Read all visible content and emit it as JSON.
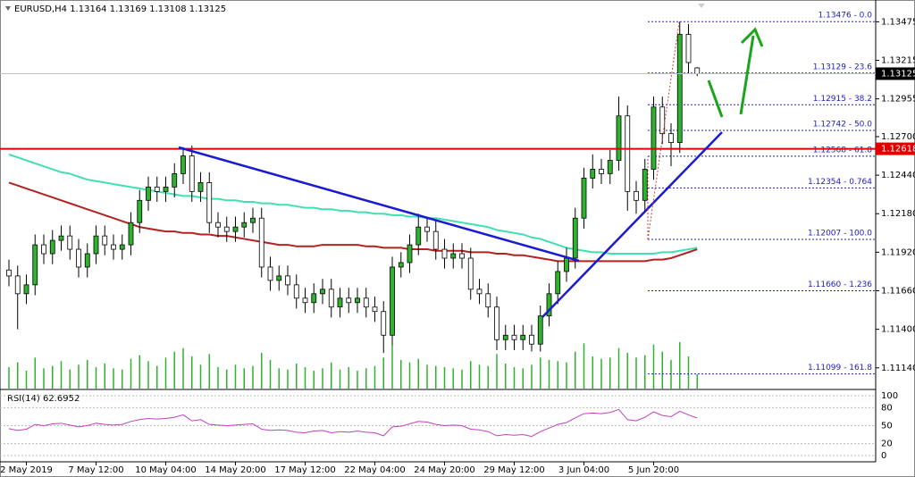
{
  "chart_data": {
    "type": "candlestick",
    "title": "EURUSD,H4  1.13164 1.13169 1.13108 1.13125",
    "categories": [
      null,
      null,
      "2 May 2019",
      null,
      null,
      null,
      null,
      null,
      null,
      null,
      "7 May 12:00",
      null,
      null,
      null,
      null,
      null,
      null,
      null,
      "10 May 04:00",
      null,
      null,
      null,
      null,
      null,
      null,
      null,
      "14 May 20:00",
      null,
      null,
      null,
      null,
      null,
      null,
      null,
      "17 May 12:00",
      null,
      null,
      null,
      null,
      null,
      null,
      null,
      "22 May 04:00",
      null,
      null,
      null,
      null,
      null,
      null,
      null,
      "24 May 20:00",
      null,
      null,
      null,
      null,
      null,
      null,
      null,
      "29 May 12:00",
      null,
      null,
      null,
      null,
      null,
      null,
      null,
      "3 Jun 04:00",
      null,
      null,
      null,
      null,
      null,
      null,
      null,
      "5 Jun 20:00",
      null,
      null,
      null,
      null,
      null
    ],
    "open": [
      1.118,
      1.1176,
      1.1164,
      1.117,
      1.1197,
      1.1191,
      1.12,
      1.1203,
      1.1194,
      1.1182,
      1.1191,
      1.1203,
      1.1197,
      1.1194,
      1.1197,
      1.1212,
      1.1227,
      1.1236,
      1.1233,
      1.1236,
      1.1245,
      1.1257,
      1.1233,
      1.1239,
      1.1212,
      1.1209,
      1.1206,
      1.1209,
      1.1212,
      1.1215,
      1.1182,
      1.1173,
      1.1176,
      1.117,
      1.1161,
      1.1158,
      1.1164,
      1.1167,
      1.1155,
      1.1161,
      1.1158,
      1.1161,
      1.1155,
      1.1152,
      1.1136,
      1.1182,
      1.1185,
      1.1197,
      1.1209,
      1.1206,
      1.1194,
      1.1188,
      1.1191,
      1.1188,
      1.1167,
      1.1164,
      1.1155,
      1.1133,
      1.1136,
      1.1133,
      1.1136,
      1.113,
      1.1149,
      1.1164,
      1.1179,
      1.1188,
      1.1215,
      1.1242,
      1.1248,
      1.1245,
      1.1254,
      1.1284,
      1.1233,
      1.1227,
      1.1248,
      1.129,
      1.1272,
      1.1266,
      1.1339,
      1.13164
    ],
    "high": [
      1.1187,
      1.1183,
      1.1177,
      1.1204,
      1.1204,
      1.1207,
      1.121,
      1.121,
      1.1201,
      1.1198,
      1.121,
      1.121,
      1.1204,
      1.1204,
      1.1219,
      1.1234,
      1.1243,
      1.1243,
      1.1243,
      1.1252,
      1.1263,
      1.1264,
      1.1246,
      1.1246,
      1.1219,
      1.1216,
      1.1216,
      1.1219,
      1.1222,
      1.1222,
      1.1189,
      1.1183,
      1.1183,
      1.1177,
      1.1168,
      1.1171,
      1.1174,
      1.1174,
      1.1168,
      1.1168,
      1.1168,
      1.1168,
      1.1162,
      1.1159,
      1.1189,
      1.1192,
      1.1204,
      1.1218,
      1.1216,
      1.1213,
      1.1201,
      1.1198,
      1.1198,
      1.1195,
      1.1174,
      1.1171,
      1.1162,
      1.1143,
      1.1143,
      1.1143,
      1.1143,
      1.1156,
      1.1171,
      1.1186,
      1.1195,
      1.1222,
      1.1249,
      1.1258,
      1.1255,
      1.1261,
      1.1297,
      1.1291,
      1.124,
      1.1255,
      1.1297,
      1.1297,
      1.1279,
      1.13476,
      1.1346,
      1.13169
    ],
    "low": [
      1.1169,
      1.114,
      1.1157,
      1.1163,
      1.1184,
      1.1184,
      1.1193,
      1.1187,
      1.1175,
      1.1175,
      1.1184,
      1.119,
      1.1187,
      1.1187,
      1.119,
      1.1205,
      1.122,
      1.1226,
      1.1226,
      1.1229,
      1.1238,
      1.1226,
      1.1226,
      1.1205,
      1.1202,
      1.1199,
      1.1199,
      1.1202,
      1.1205,
      1.1175,
      1.1166,
      1.1166,
      1.1163,
      1.1154,
      1.1151,
      1.1151,
      1.1157,
      1.1148,
      1.1148,
      1.1151,
      1.1151,
      1.1148,
      1.1145,
      1.1124,
      1.1129,
      1.1175,
      1.1178,
      1.119,
      1.1199,
      1.1187,
      1.1181,
      1.1181,
      1.1181,
      1.116,
      1.1157,
      1.1148,
      1.1126,
      1.1126,
      1.1126,
      1.1126,
      1.1125,
      1.1125,
      1.1142,
      1.1157,
      1.1172,
      1.1181,
      1.1208,
      1.1235,
      1.1238,
      1.1238,
      1.1247,
      1.122,
      1.1218,
      1.122,
      1.1241,
      1.1265,
      1.125,
      1.1259,
      1.1313,
      1.13108
    ],
    "close": [
      1.1176,
      1.1164,
      1.117,
      1.1197,
      1.1191,
      1.12,
      1.1203,
      1.1194,
      1.1182,
      1.1191,
      1.1203,
      1.1197,
      1.1194,
      1.1197,
      1.1212,
      1.1227,
      1.1236,
      1.1233,
      1.1236,
      1.1245,
      1.1257,
      1.1233,
      1.1239,
      1.1212,
      1.1209,
      1.1206,
      1.1209,
      1.1212,
      1.1215,
      1.1182,
      1.1173,
      1.1176,
      1.117,
      1.1161,
      1.1158,
      1.1164,
      1.1167,
      1.1155,
      1.1161,
      1.1158,
      1.1161,
      1.1155,
      1.1152,
      1.1136,
      1.1182,
      1.1185,
      1.1197,
      1.1209,
      1.1206,
      1.1194,
      1.1188,
      1.1191,
      1.1188,
      1.1167,
      1.1164,
      1.1155,
      1.1133,
      1.1136,
      1.1133,
      1.1136,
      1.113,
      1.1149,
      1.1164,
      1.1179,
      1.1188,
      1.1215,
      1.1242,
      1.1248,
      1.1245,
      1.1254,
      1.1284,
      1.1233,
      1.1227,
      1.1248,
      1.129,
      1.1272,
      1.1266,
      1.1339,
      1.132,
      1.13125
    ],
    "volume": [
      1800,
      2200,
      1500,
      2600,
      1700,
      1900,
      2300,
      1600,
      2000,
      2400,
      1800,
      2100,
      1700,
      1600,
      2500,
      2800,
      2300,
      1900,
      2600,
      3100,
      3400,
      2700,
      2000,
      2900,
      1800,
      1600,
      2000,
      1700,
      1900,
      3000,
      2400,
      1700,
      1600,
      2100,
      1800,
      1500,
      1700,
      2200,
      1600,
      1800,
      1500,
      1700,
      1900,
      2600,
      3600,
      2400,
      2200,
      2500,
      2000,
      1900,
      1800,
      1700,
      1600,
      2300,
      2000,
      1900,
      2900,
      2100,
      1800,
      1700,
      2000,
      2600,
      2400,
      2300,
      2200,
      3100,
      3800,
      2700,
      2500,
      2600,
      3400,
      3000,
      2600,
      2800,
      3700,
      3100,
      2400,
      3900,
      2700,
      1200
    ],
    "up_color": "#2db32d",
    "down_color": "#ffffff",
    "volume_color": "#2db32d",
    "ylim": [
      1.11,
      1.1361
    ],
    "yticks": [
      1.13475,
      1.13215,
      1.12955,
      {
        "value": 1.127,
        "label": "1.12700"
      },
      {
        "value": 1.1244,
        "label": "1.12440"
      },
      {
        "value": 1.1218,
        "label": "1.12180"
      },
      {
        "value": 1.1192,
        "label": "1.11920"
      },
      {
        "value": 1.1166,
        "label": "1.11660"
      },
      {
        "value": 1.114,
        "label": "1.11400"
      },
      {
        "value": 1.1114,
        "label": "1.11140"
      }
    ],
    "moving_averages": [
      {
        "color": "#40e0b0",
        "values": [
          1.1258,
          1.1256,
          1.1254,
          1.1252,
          1.125,
          1.1248,
          1.1246,
          1.1245,
          1.1243,
          1.1241,
          1.124,
          1.1239,
          1.1238,
          1.1237,
          1.1236,
          1.1235,
          1.1234,
          1.1233,
          1.1232,
          1.1231,
          1.123,
          1.123,
          1.1229,
          1.1228,
          1.1228,
          1.1227,
          1.1227,
          1.1226,
          1.1226,
          1.1225,
          1.1225,
          1.1224,
          1.1224,
          1.1223,
          1.1222,
          1.1222,
          1.1221,
          1.1221,
          1.122,
          1.122,
          1.1219,
          1.1219,
          1.1218,
          1.1218,
          1.1217,
          1.1217,
          1.1216,
          1.1216,
          1.1215,
          1.1215,
          1.1214,
          1.1213,
          1.1212,
          1.1211,
          1.121,
          1.1209,
          1.1207,
          1.1206,
          1.1205,
          1.1204,
          1.1202,
          1.1201,
          1.1199,
          1.1197,
          1.1195,
          1.1194,
          1.1193,
          1.1192,
          1.1192,
          1.1191,
          1.1191,
          1.1191,
          1.1191,
          1.1191,
          1.1191,
          1.1192,
          1.1192,
          1.1193,
          1.1194,
          1.1195
        ]
      },
      {
        "color": "#b22222",
        "values": [
          1.1239,
          1.1237,
          1.1235,
          1.1233,
          1.1231,
          1.1229,
          1.1227,
          1.1225,
          1.1223,
          1.1221,
          1.1219,
          1.1217,
          1.1215,
          1.1213,
          1.1211,
          1.1209,
          1.1208,
          1.1207,
          1.1206,
          1.1206,
          1.1205,
          1.1205,
          1.1204,
          1.1204,
          1.1203,
          1.1203,
          1.1202,
          1.1201,
          1.12,
          1.1199,
          1.1198,
          1.1197,
          1.1197,
          1.1196,
          1.1196,
          1.1196,
          1.1197,
          1.1197,
          1.1197,
          1.1197,
          1.1197,
          1.1196,
          1.1196,
          1.1195,
          1.1195,
          1.1195,
          1.1194,
          1.1194,
          1.1194,
          1.1193,
          1.1193,
          1.1193,
          1.1193,
          1.1192,
          1.1192,
          1.1192,
          1.1191,
          1.1191,
          1.119,
          1.119,
          1.1189,
          1.1188,
          1.1187,
          1.1186,
          1.1186,
          1.1186,
          1.1186,
          1.1186,
          1.1186,
          1.1186,
          1.1186,
          1.1186,
          1.1186,
          1.1186,
          1.1187,
          1.1187,
          1.1188,
          1.119,
          1.1192,
          1.1194
        ]
      }
    ],
    "resistance": 1.12618,
    "resistance_color": "#e00000",
    "last_price": 1.13125,
    "fibonacci": [
      {
        "value": 1.13476,
        "label": "1.13476 - 0.0"
      },
      {
        "value": 1.13129,
        "label": "1.13129 - 23.6"
      },
      {
        "value": 1.12915,
        "label": "1.12915 - 38.2"
      },
      {
        "value": 1.12742,
        "label": "1.12742 - 50.0"
      },
      {
        "value": 1.12568,
        "label": "1.12568 - 61.8"
      },
      {
        "value": 1.12354,
        "label": "1.12354 - 0.764"
      },
      {
        "value": 1.12007,
        "label": "1.12007 - 100.0"
      },
      {
        "value": 1.1166,
        "label": "1.11660 - 1.236"
      },
      {
        "value": 1.11099,
        "label": "1.11099 - 161.8"
      }
    ],
    "fibonacci_color": "#2020c0",
    "rsi": {
      "title": "RSI(14) 62.6952",
      "color": "#c040c0",
      "ylim": [
        0,
        100
      ],
      "yticks": [
        0,
        20,
        50,
        80,
        100
      ],
      "values": [
        45,
        42,
        44,
        52,
        50,
        53,
        54,
        51,
        48,
        50,
        54,
        52,
        51,
        52,
        57,
        60,
        62,
        61,
        62,
        64,
        68,
        58,
        60,
        52,
        51,
        50,
        51,
        52,
        53,
        44,
        42,
        43,
        42,
        39,
        38,
        41,
        42,
        38,
        40,
        39,
        41,
        39,
        38,
        33,
        48,
        49,
        53,
        57,
        56,
        52,
        50,
        51,
        50,
        44,
        43,
        40,
        33,
        35,
        34,
        35,
        32,
        40,
        46,
        52,
        55,
        63,
        70,
        71,
        70,
        72,
        77,
        60,
        58,
        64,
        73,
        67,
        65,
        74,
        68,
        62.6952
      ]
    }
  }
}
